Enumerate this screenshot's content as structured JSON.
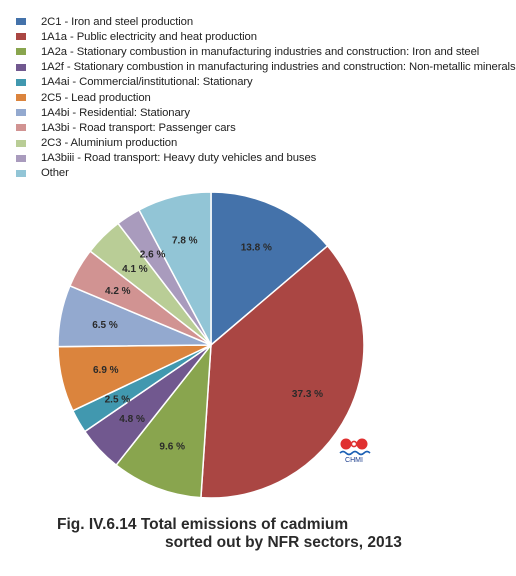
{
  "chart_data": {
    "type": "pie",
    "title": "Fig. IV.6.14  Total emissions of cadmium",
    "subtitle": "sorted out by NFR sectors, 2013",
    "legend_position": "top",
    "unit": "%",
    "slices": [
      {
        "name": "2C1 - Iron and steel production",
        "value": 13.8,
        "label": "13.8 %",
        "color": "#4472aa"
      },
      {
        "name": "1A1a - Public electricity and heat production",
        "value": 37.3,
        "label": "37.3 %",
        "color": "#aa4643"
      },
      {
        "name": "1A2a - Stationary combustion in manufacturing industries and construction: Iron and steel",
        "value": 9.6,
        "label": "9.6 %",
        "color": "#89a54e"
      },
      {
        "name": "1A2f - Stationary combustion in manufacturing industries and construction: Non-metallic minerals",
        "value": 4.8,
        "label": "4.8 %",
        "color": "#71588f"
      },
      {
        "name": "1A4ai - Commercial/institutional: Stationary",
        "value": 2.5,
        "label": "2.5 %",
        "color": "#4198af"
      },
      {
        "name": "2C5 - Lead production",
        "value": 6.9,
        "label": "6.9 %",
        "color": "#db843d"
      },
      {
        "name": "1A4bi - Residential: Stationary",
        "value": 6.5,
        "label": "6.5 %",
        "color": "#93a9cf"
      },
      {
        "name": "1A3bi - Road transport: Passenger cars",
        "value": 4.2,
        "label": "4.2 %",
        "color": "#d19392"
      },
      {
        "name": "2C3 - Aluminium production",
        "value": 4.1,
        "label": "4.1 %",
        "color": "#b9cd96"
      },
      {
        "name": "1A3biii - Road transport: Heavy duty vehicles and buses",
        "value": 2.6,
        "label": "2.6 %",
        "color": "#a99bbd"
      },
      {
        "name": "Other",
        "value": 7.8,
        "label": "7.8 %",
        "color": "#92c5d6"
      }
    ]
  },
  "logo": {
    "text": "CHMI"
  }
}
